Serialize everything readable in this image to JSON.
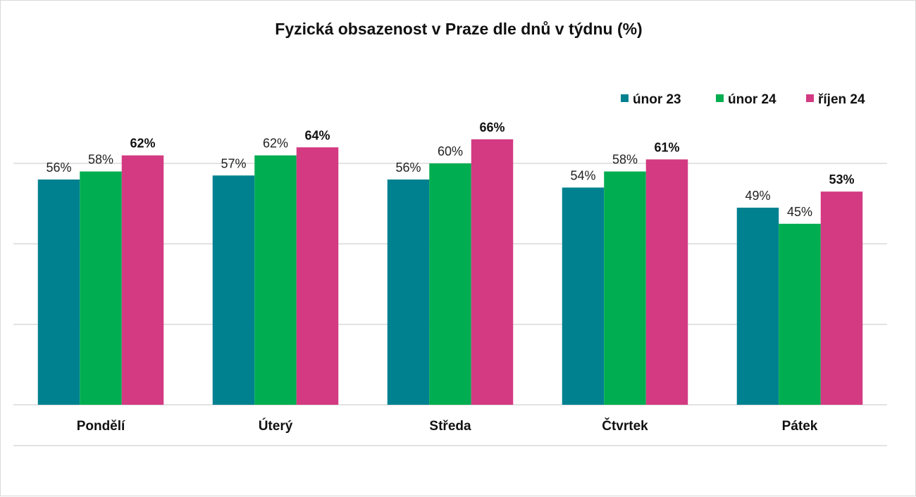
{
  "chart_data": {
    "type": "bar",
    "title": "Fyzická obsazenost v Praze dle dnů v týdnu (%)",
    "xlabel": "",
    "ylabel": "",
    "categories": [
      "Pondělí",
      "Úterý",
      "Středa",
      "Čtvrtek",
      "Pátek"
    ],
    "series": [
      {
        "name": "únor 23",
        "color": "#00818f",
        "values": [
          56,
          57,
          56,
          54,
          49
        ],
        "labels": [
          "56%",
          "57%",
          "56%",
          "54%",
          "49%"
        ],
        "bold_labels": false
      },
      {
        "name": "únor 24",
        "color": "#00ad50",
        "values": [
          58,
          62,
          60,
          58,
          45
        ],
        "labels": [
          "58%",
          "62%",
          "60%",
          "58%",
          "45%"
        ],
        "bold_labels": false
      },
      {
        "name": "říjen 24",
        "color": "#d33a82",
        "values": [
          62,
          64,
          66,
          61,
          53
        ],
        "labels": [
          "62%",
          "64%",
          "66%",
          "61%",
          "53%"
        ],
        "bold_labels": true
      }
    ],
    "ylim": [
      0,
      70
    ],
    "grid": true,
    "legend_position": "top-right"
  }
}
